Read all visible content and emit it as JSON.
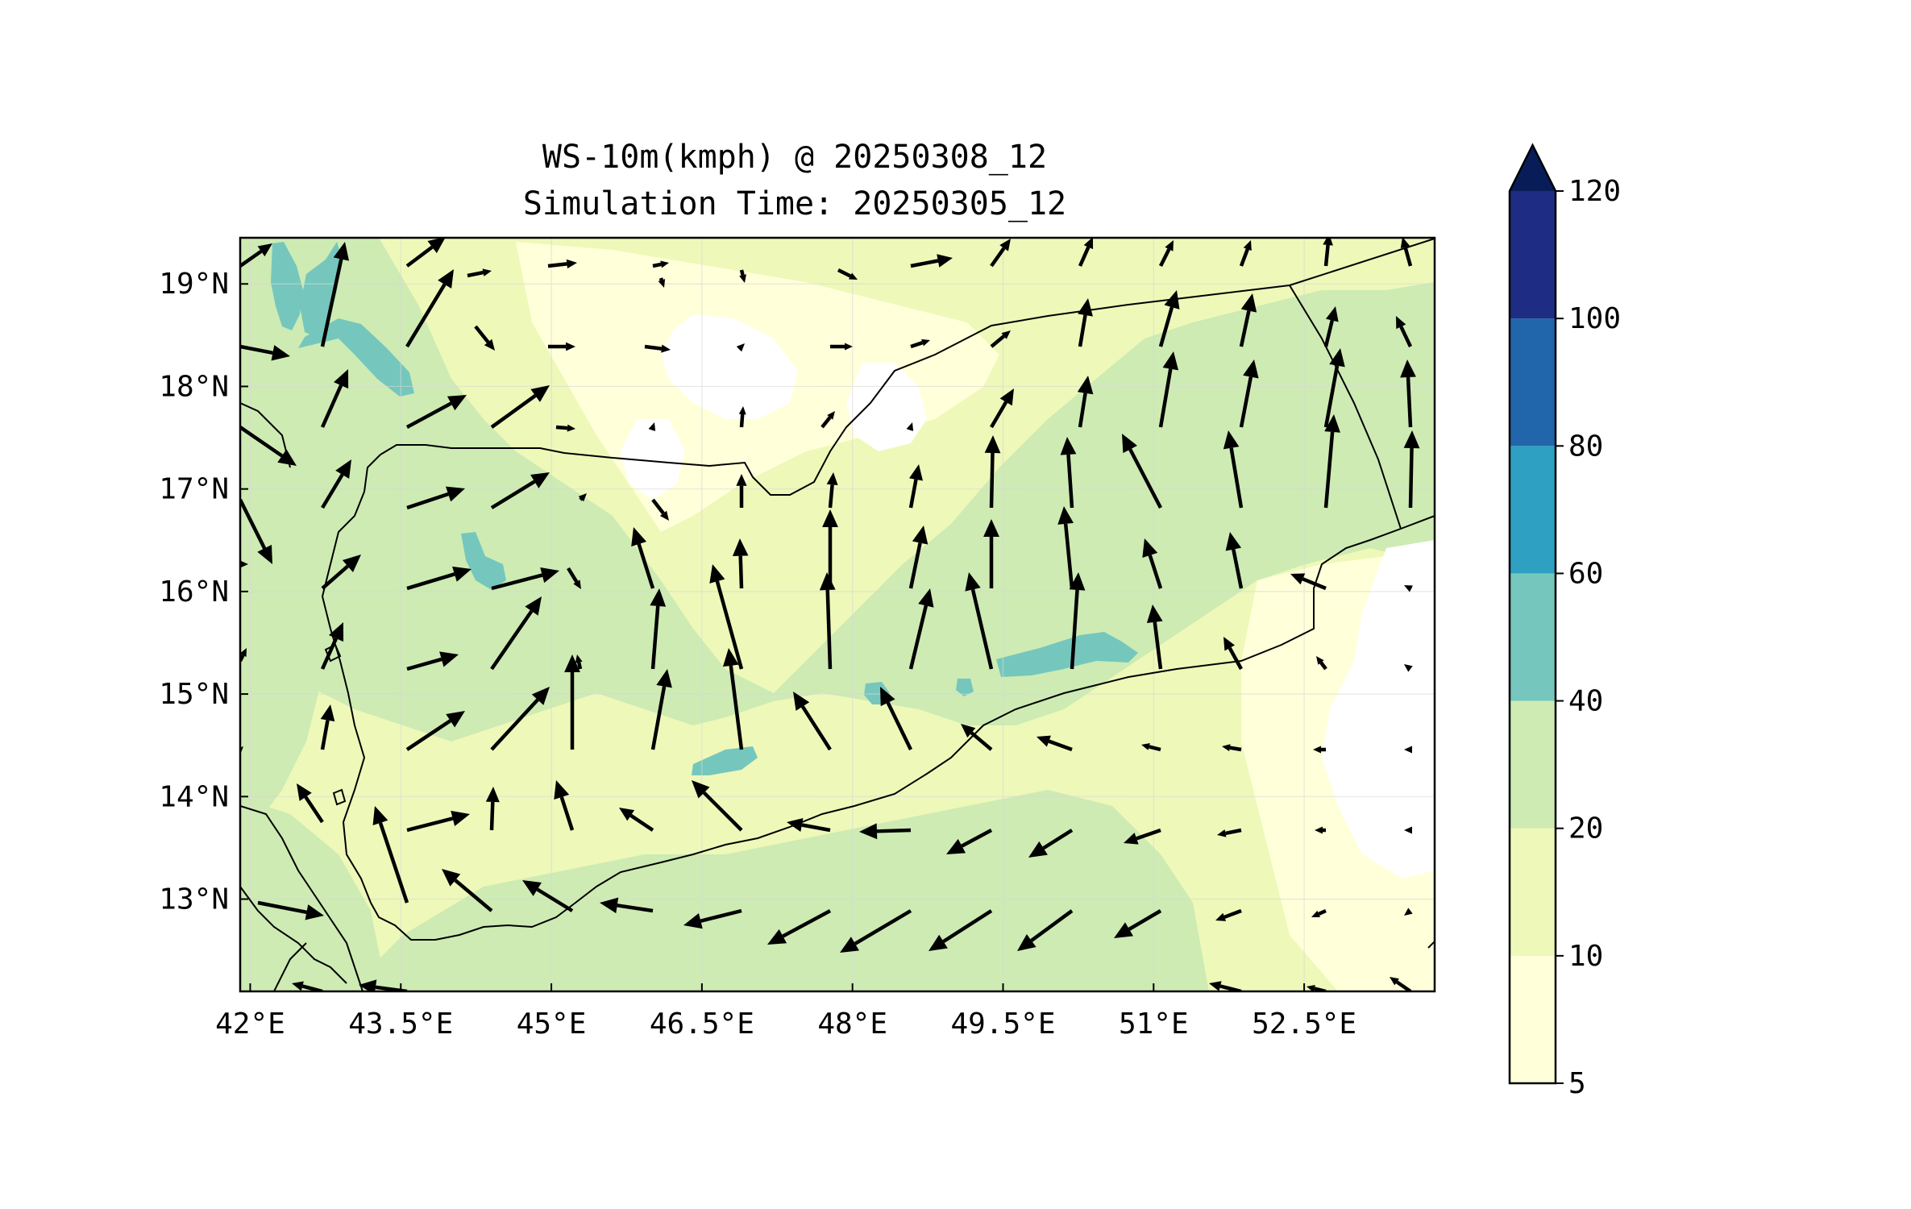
{
  "title": {
    "line1": "WS-10m(kmph) @ 20250308_12",
    "line2": "Simulation Time: 20250305_12"
  },
  "axes": {
    "x_ticks": [
      "42°E",
      "43.5°E",
      "45°E",
      "46.5°E",
      "48°E",
      "49.5°E",
      "51°E",
      "52.5°E"
    ],
    "x_values": [
      42,
      43.5,
      45,
      46.5,
      48,
      49.5,
      51,
      52.5
    ],
    "y_ticks": [
      "13°N",
      "14°N",
      "15°N",
      "16°N",
      "17°N",
      "18°N",
      "19°N"
    ],
    "y_values": [
      13,
      14,
      15,
      16,
      17,
      18,
      19
    ],
    "lon_range": [
      41.9,
      53.8
    ],
    "lat_range": [
      12.1,
      19.45
    ],
    "grid": true
  },
  "colorbar": {
    "levels": [
      "5",
      "10",
      "20",
      "40",
      "60",
      "80",
      "100",
      "120"
    ],
    "level_values": [
      5,
      10,
      20,
      40,
      60,
      80,
      100,
      120
    ],
    "colors": [
      "#ffffd9",
      "#eef8b9",
      "#cdebb3",
      "#75c7bd",
      "#2ea0c1",
      "#2165ab",
      "#1e2c83"
    ],
    "extend_color": "#081d58",
    "extend": "max"
  },
  "wind_field": {
    "description_units": "kmph",
    "field_colors": {
      "calm": "#ffffff",
      "very_light": "#ffffd9",
      "light": "#eef8b9",
      "moderate": "#cdebb3",
      "strong": "#75c7bd"
    }
  }
}
